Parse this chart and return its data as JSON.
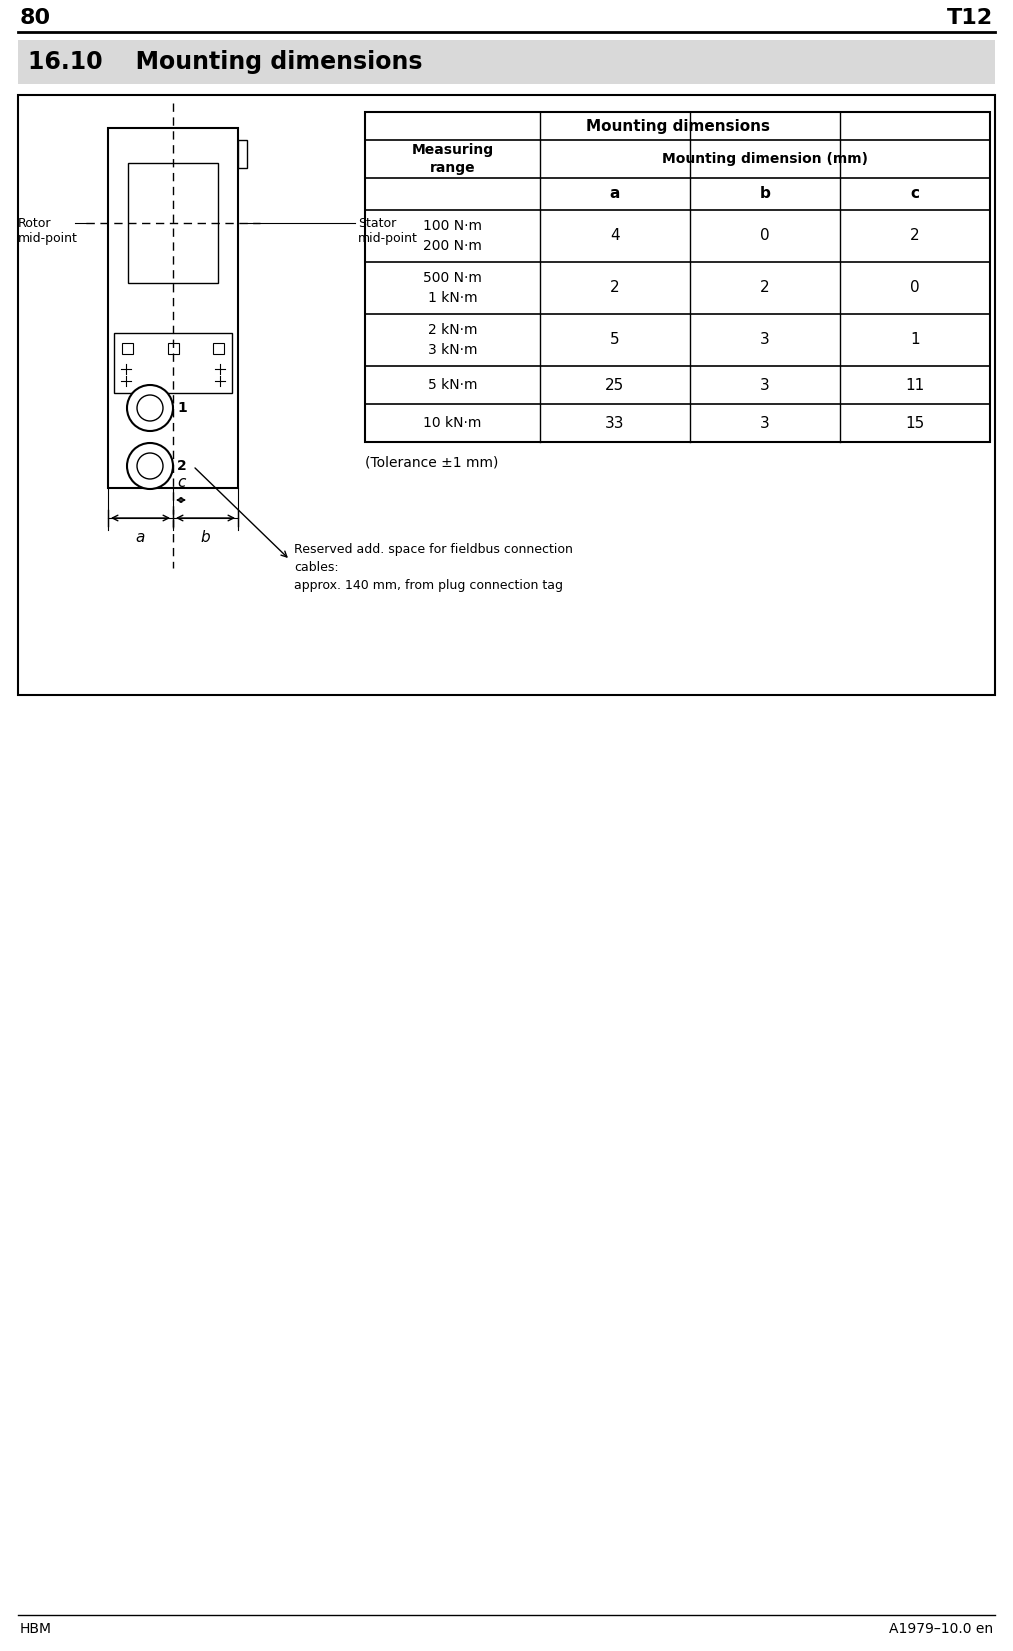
{
  "page_num": "80",
  "page_code": "T12",
  "section_title": "16.10    Mounting dimensions",
  "header_bg": "#d9d9d9",
  "table_title": "Mounting dimensions",
  "sub_headers": [
    "a",
    "b",
    "c"
  ],
  "rows": [
    {
      "range": "100 N·m\n200 N·m",
      "a": "4",
      "b": "0",
      "c": "2"
    },
    {
      "range": "500 N·m\n1 kN·m",
      "a": "2",
      "b": "2",
      "c": "0"
    },
    {
      "range": "2 kN·m\n3 kN·m",
      "a": "5",
      "b": "3",
      "c": "1"
    },
    {
      "range": "5 kN·m",
      "a": "25",
      "b": "3",
      "c": "11"
    },
    {
      "range": "10 kN·m",
      "a": "33",
      "b": "3",
      "c": "15"
    }
  ],
  "tolerance_note": "(Tolerance ±1 mm)",
  "fieldbus_note": "Reserved add. space for fieldbus connection\ncables:\napprox. 140 mm, from plug connection tag",
  "label_rotor": "Rotor\nmid-point",
  "label_stator": "Stator\nmid-point",
  "footer_left": "HBM",
  "footer_right": "A1979–10.0 en",
  "bg_color": "#ffffff",
  "border_color": "#000000",
  "gray": "#d9d9d9"
}
